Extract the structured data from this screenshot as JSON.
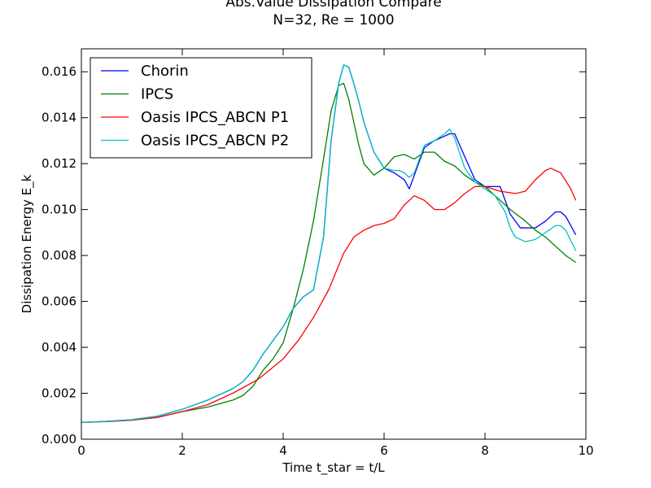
{
  "chart_data": {
    "type": "line",
    "title": "Abs.Value Dissipation Compare",
    "subtitle": "N=32, Re = 1000",
    "xlabel": "Time t_star = t/L",
    "ylabel": "Dissipation Energy E_k",
    "xlim": [
      0,
      10
    ],
    "ylim": [
      0,
      0.017
    ],
    "x_ticks": [
      0,
      2,
      4,
      6,
      8,
      10
    ],
    "x_tick_labels": [
      "0",
      "2",
      "4",
      "6",
      "8",
      "10"
    ],
    "y_ticks": [
      0,
      0.002,
      0.004,
      0.006,
      0.008,
      0.01,
      0.012,
      0.014,
      0.016
    ],
    "y_tick_labels": [
      "0.000",
      "0.002",
      "0.004",
      "0.006",
      "0.008",
      "0.010",
      "0.012",
      "0.014",
      "0.016"
    ],
    "grid": false,
    "legend_position": "top-left",
    "series": [
      {
        "name": "Chorin",
        "color": "#0000ff",
        "x": [
          0,
          0.5,
          1.0,
          1.5,
          2.0,
          2.5,
          3.0,
          3.2,
          3.4,
          3.6,
          3.8,
          4.0,
          4.2,
          4.4,
          4.6,
          4.8,
          4.95,
          5.1,
          5.2,
          5.3,
          5.4,
          5.5,
          5.6,
          5.8,
          6.0,
          6.2,
          6.4,
          6.5,
          6.6,
          6.8,
          7.0,
          7.2,
          7.3,
          7.4,
          7.6,
          7.8,
          8.0,
          8.2,
          8.3,
          8.5,
          8.7,
          9.0,
          9.2,
          9.4,
          9.5,
          9.6,
          9.8
        ],
        "y": [
          0.00073,
          0.00078,
          0.00085,
          0.001,
          0.0013,
          0.0017,
          0.0022,
          0.0025,
          0.003,
          0.0037,
          0.0043,
          0.0049,
          0.0057,
          0.0062,
          0.0065,
          0.0088,
          0.013,
          0.0155,
          0.0163,
          0.0162,
          0.0155,
          0.0147,
          0.0138,
          0.0125,
          0.0118,
          0.0116,
          0.0113,
          0.0109,
          0.0115,
          0.0127,
          0.013,
          0.0132,
          0.0133,
          0.0133,
          0.0123,
          0.0113,
          0.011,
          0.011,
          0.011,
          0.0098,
          0.0092,
          0.0092,
          0.0095,
          0.0099,
          0.0099,
          0.0097,
          0.0089
        ]
      },
      {
        "name": "IPCS",
        "color": "#008000",
        "x": [
          0,
          0.5,
          1.0,
          1.5,
          2.0,
          2.5,
          3.0,
          3.2,
          3.4,
          3.6,
          3.8,
          4.0,
          4.2,
          4.4,
          4.6,
          4.8,
          4.95,
          5.1,
          5.2,
          5.3,
          5.4,
          5.5,
          5.6,
          5.8,
          6.0,
          6.2,
          6.4,
          6.5,
          6.6,
          6.8,
          7.0,
          7.2,
          7.4,
          7.6,
          7.8,
          8.0,
          8.2,
          8.5,
          8.8,
          9.0,
          9.2,
          9.4,
          9.6,
          9.8
        ],
        "y": [
          0.00073,
          0.00077,
          0.00083,
          0.00095,
          0.0012,
          0.0014,
          0.0017,
          0.0019,
          0.0023,
          0.003,
          0.0035,
          0.0042,
          0.0057,
          0.0074,
          0.0095,
          0.0122,
          0.0143,
          0.0154,
          0.0155,
          0.0148,
          0.0138,
          0.0128,
          0.012,
          0.0115,
          0.0118,
          0.0123,
          0.0124,
          0.0123,
          0.0122,
          0.0125,
          0.0125,
          0.0121,
          0.0119,
          0.0115,
          0.0112,
          0.011,
          0.0106,
          0.01,
          0.0095,
          0.0091,
          0.0088,
          0.0084,
          0.008,
          0.0077
        ]
      },
      {
        "name": "Oasis IPCS_ABCN P1",
        "color": "#ff0000",
        "x": [
          0,
          0.5,
          1.0,
          1.5,
          2.0,
          2.5,
          3.0,
          3.5,
          4.0,
          4.3,
          4.6,
          4.9,
          5.2,
          5.4,
          5.6,
          5.8,
          6.0,
          6.2,
          6.4,
          6.6,
          6.8,
          7.0,
          7.2,
          7.4,
          7.6,
          7.8,
          8.0,
          8.3,
          8.6,
          8.8,
          9.0,
          9.2,
          9.3,
          9.5,
          9.7,
          9.8
        ],
        "y": [
          0.00073,
          0.00077,
          0.00083,
          0.00095,
          0.0012,
          0.0015,
          0.002,
          0.0026,
          0.0035,
          0.0043,
          0.0053,
          0.0065,
          0.0081,
          0.0088,
          0.0091,
          0.0093,
          0.0094,
          0.0096,
          0.0102,
          0.0106,
          0.0104,
          0.01,
          0.01,
          0.0103,
          0.0107,
          0.011,
          0.011,
          0.0108,
          0.0107,
          0.0108,
          0.0113,
          0.0117,
          0.0118,
          0.0116,
          0.0109,
          0.0104
        ]
      },
      {
        "name": "Oasis IPCS_ABCN P2",
        "color": "#00bfbf",
        "x": [
          0,
          0.5,
          1.0,
          1.5,
          2.0,
          2.5,
          3.0,
          3.2,
          3.4,
          3.6,
          3.8,
          4.0,
          4.2,
          4.4,
          4.6,
          4.8,
          4.95,
          5.1,
          5.2,
          5.3,
          5.4,
          5.5,
          5.6,
          5.8,
          6.0,
          6.2,
          6.3,
          6.4,
          6.5,
          6.6,
          6.8,
          7.0,
          7.2,
          7.3,
          7.4,
          7.6,
          7.8,
          8.0,
          8.2,
          8.4,
          8.5,
          8.6,
          8.8,
          9.0,
          9.2,
          9.4,
          9.5,
          9.6,
          9.8
        ],
        "y": [
          0.00073,
          0.00078,
          0.00085,
          0.001,
          0.0013,
          0.0017,
          0.0022,
          0.0025,
          0.003,
          0.0037,
          0.0043,
          0.0049,
          0.0057,
          0.0062,
          0.0065,
          0.0088,
          0.013,
          0.0155,
          0.0163,
          0.0162,
          0.0155,
          0.0147,
          0.0138,
          0.0125,
          0.0118,
          0.0117,
          0.0117,
          0.0116,
          0.0114,
          0.0116,
          0.0128,
          0.013,
          0.0133,
          0.0135,
          0.0131,
          0.0118,
          0.0112,
          0.0109,
          0.0106,
          0.0099,
          0.0092,
          0.0088,
          0.0086,
          0.0087,
          0.009,
          0.0093,
          0.0093,
          0.0091,
          0.0082
        ]
      }
    ]
  }
}
